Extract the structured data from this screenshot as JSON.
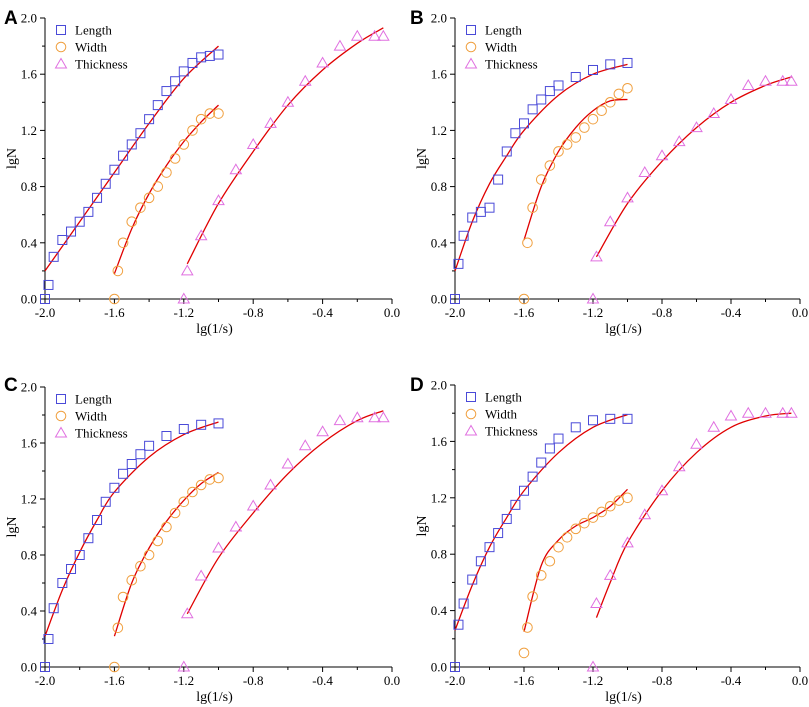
{
  "chart_data": [
    {
      "type": "scatter",
      "panel": "A",
      "xlabel": "lg(1/s)",
      "ylabel": "lgN",
      "xlim": [
        -2.0,
        0.0
      ],
      "ylim": [
        0.0,
        2.0
      ],
      "xticks": [
        "-2.0",
        "-1.6",
        "-1.2",
        "-0.8",
        "-0.4",
        "0.0"
      ],
      "yticks": [
        "0.0",
        "0.4",
        "0.8",
        "1.2",
        "1.6",
        "2.0"
      ],
      "legend": [
        "Length",
        "Width",
        "Thickness"
      ],
      "series": [
        {
          "name": "Length",
          "x": [
            -2.0,
            -1.98,
            -1.95,
            -1.9,
            -1.85,
            -1.8,
            -1.75,
            -1.7,
            -1.65,
            -1.6,
            -1.55,
            -1.5,
            -1.45,
            -1.4,
            -1.35,
            -1.3,
            -1.25,
            -1.2,
            -1.15,
            -1.1,
            -1.05,
            -1.0
          ],
          "y": [
            0.0,
            0.1,
            0.3,
            0.42,
            0.48,
            0.55,
            0.62,
            0.72,
            0.82,
            0.92,
            1.02,
            1.1,
            1.18,
            1.28,
            1.38,
            1.48,
            1.55,
            1.62,
            1.68,
            1.72,
            1.73,
            1.74
          ],
          "fit_x": [
            -2.0,
            -1.8,
            -1.6,
            -1.4,
            -1.2,
            -1.0
          ],
          "fit_y": [
            0.2,
            0.55,
            0.9,
            1.25,
            1.57,
            1.8
          ]
        },
        {
          "name": "Width",
          "x": [
            -1.6,
            -1.58,
            -1.55,
            -1.5,
            -1.45,
            -1.4,
            -1.35,
            -1.3,
            -1.25,
            -1.2,
            -1.15,
            -1.1,
            -1.05,
            -1.0
          ],
          "y": [
            0.0,
            0.2,
            0.4,
            0.55,
            0.65,
            0.72,
            0.8,
            0.9,
            1.0,
            1.1,
            1.2,
            1.28,
            1.32,
            1.32
          ],
          "fit_x": [
            -1.6,
            -1.5,
            -1.4,
            -1.3,
            -1.2,
            -1.1,
            -1.0
          ],
          "fit_y": [
            0.18,
            0.5,
            0.75,
            0.95,
            1.12,
            1.26,
            1.38
          ]
        },
        {
          "name": "Thickness",
          "x": [
            -1.2,
            -1.18,
            -1.1,
            -1.0,
            -0.9,
            -0.8,
            -0.7,
            -0.6,
            -0.5,
            -0.4,
            -0.3,
            -0.2,
            -0.1,
            -0.05
          ],
          "y": [
            0.0,
            0.2,
            0.45,
            0.7,
            0.92,
            1.1,
            1.25,
            1.4,
            1.55,
            1.68,
            1.8,
            1.87,
            1.87,
            1.87
          ],
          "fit_x": [
            -1.18,
            -1.0,
            -0.8,
            -0.6,
            -0.4,
            -0.2,
            -0.05
          ],
          "fit_y": [
            0.25,
            0.68,
            1.05,
            1.38,
            1.63,
            1.82,
            1.93
          ]
        }
      ]
    },
    {
      "type": "scatter",
      "panel": "B",
      "xlabel": "lg(1/s)",
      "ylabel": "lgN",
      "xlim": [
        -2.0,
        0.0
      ],
      "ylim": [
        0.0,
        2.0
      ],
      "xticks": [
        "-2.0",
        "-1.6",
        "-1.2",
        "-0.8",
        "-0.4",
        "0.0"
      ],
      "yticks": [
        "0.0",
        "0.4",
        "0.8",
        "1.2",
        "1.6",
        "2.0"
      ],
      "legend": [
        "Length",
        "Width",
        "Thickness"
      ],
      "series": [
        {
          "name": "Length",
          "x": [
            -2.0,
            -1.98,
            -1.95,
            -1.9,
            -1.85,
            -1.8,
            -1.75,
            -1.7,
            -1.65,
            -1.6,
            -1.55,
            -1.5,
            -1.45,
            -1.4,
            -1.3,
            -1.2,
            -1.1,
            -1.0
          ],
          "y": [
            0.0,
            0.25,
            0.45,
            0.58,
            0.62,
            0.65,
            0.85,
            1.05,
            1.18,
            1.25,
            1.35,
            1.42,
            1.48,
            1.52,
            1.58,
            1.63,
            1.67,
            1.68
          ],
          "fit_x": [
            -2.0,
            -1.9,
            -1.8,
            -1.7,
            -1.6,
            -1.4,
            -1.2,
            -1.0
          ],
          "fit_y": [
            0.2,
            0.55,
            0.82,
            1.02,
            1.2,
            1.45,
            1.6,
            1.67
          ]
        },
        {
          "name": "Width",
          "x": [
            -1.6,
            -1.58,
            -1.55,
            -1.5,
            -1.45,
            -1.4,
            -1.35,
            -1.3,
            -1.25,
            -1.2,
            -1.15,
            -1.1,
            -1.05,
            -1.0
          ],
          "y": [
            0.0,
            0.4,
            0.65,
            0.85,
            0.95,
            1.05,
            1.1,
            1.15,
            1.22,
            1.28,
            1.34,
            1.4,
            1.46,
            1.5
          ],
          "fit_x": [
            -1.6,
            -1.5,
            -1.4,
            -1.3,
            -1.2,
            -1.1,
            -1.0
          ],
          "fit_y": [
            0.42,
            0.8,
            1.05,
            1.22,
            1.34,
            1.41,
            1.42
          ]
        },
        {
          "name": "Thickness",
          "x": [
            -1.2,
            -1.18,
            -1.1,
            -1.0,
            -0.9,
            -0.8,
            -0.7,
            -0.6,
            -0.5,
            -0.4,
            -0.3,
            -0.2,
            -0.1,
            -0.05
          ],
          "y": [
            0.0,
            0.3,
            0.55,
            0.72,
            0.9,
            1.02,
            1.12,
            1.22,
            1.32,
            1.42,
            1.52,
            1.55,
            1.55,
            1.55
          ],
          "fit_x": [
            -1.18,
            -1.0,
            -0.8,
            -0.6,
            -0.4,
            -0.2,
            -0.05
          ],
          "fit_y": [
            0.3,
            0.68,
            0.98,
            1.22,
            1.4,
            1.52,
            1.58
          ]
        }
      ]
    },
    {
      "type": "scatter",
      "panel": "C",
      "xlabel": "lg(1/s)",
      "ylabel": "lgN",
      "xlim": [
        -2.0,
        0.0
      ],
      "ylim": [
        0.0,
        2.0
      ],
      "xticks": [
        "-2.0",
        "-1.6",
        "-1.2",
        "-0.8",
        "-0.4",
        "0.0"
      ],
      "yticks": [
        "0.0",
        "0.4",
        "0.8",
        "1.2",
        "1.6",
        "2.0"
      ],
      "legend": [
        "Length",
        "Width",
        "Thickness"
      ],
      "series": [
        {
          "name": "Length",
          "x": [
            -2.0,
            -1.98,
            -1.95,
            -1.9,
            -1.85,
            -1.8,
            -1.75,
            -1.7,
            -1.65,
            -1.6,
            -1.55,
            -1.5,
            -1.45,
            -1.4,
            -1.3,
            -1.2,
            -1.1,
            -1.0
          ],
          "y": [
            0.0,
            0.2,
            0.42,
            0.6,
            0.7,
            0.8,
            0.92,
            1.05,
            1.18,
            1.28,
            1.38,
            1.45,
            1.52,
            1.58,
            1.65,
            1.7,
            1.73,
            1.74
          ],
          "fit_x": [
            -2.0,
            -1.9,
            -1.8,
            -1.7,
            -1.6,
            -1.4,
            -1.2,
            -1.0
          ],
          "fit_y": [
            0.22,
            0.55,
            0.82,
            1.05,
            1.25,
            1.5,
            1.66,
            1.75
          ]
        },
        {
          "name": "Width",
          "x": [
            -1.6,
            -1.58,
            -1.55,
            -1.5,
            -1.45,
            -1.4,
            -1.35,
            -1.3,
            -1.25,
            -1.2,
            -1.15,
            -1.1,
            -1.05,
            -1.0
          ],
          "y": [
            0.0,
            0.28,
            0.5,
            0.62,
            0.72,
            0.8,
            0.9,
            1.0,
            1.1,
            1.18,
            1.25,
            1.3,
            1.34,
            1.35
          ],
          "fit_x": [
            -1.6,
            -1.5,
            -1.4,
            -1.3,
            -1.2,
            -1.1,
            -1.0
          ],
          "fit_y": [
            0.22,
            0.6,
            0.85,
            1.04,
            1.19,
            1.31,
            1.39
          ]
        },
        {
          "name": "Thickness",
          "x": [
            -1.2,
            -1.18,
            -1.1,
            -1.0,
            -0.9,
            -0.8,
            -0.7,
            -0.6,
            -0.5,
            -0.4,
            -0.3,
            -0.2,
            -0.1,
            -0.05
          ],
          "y": [
            0.0,
            0.38,
            0.65,
            0.85,
            1.0,
            1.15,
            1.3,
            1.45,
            1.58,
            1.68,
            1.76,
            1.78,
            1.78,
            1.78
          ],
          "fit_x": [
            -1.18,
            -1.0,
            -0.8,
            -0.6,
            -0.4,
            -0.2,
            -0.05
          ],
          "fit_y": [
            0.38,
            0.78,
            1.1,
            1.38,
            1.6,
            1.76,
            1.83
          ]
        }
      ]
    },
    {
      "type": "scatter",
      "panel": "D",
      "xlabel": "lg(1/s)",
      "ylabel": "lgN",
      "xlim": [
        -2.0,
        0.0
      ],
      "ylim": [
        0.0,
        2.0
      ],
      "xticks": [
        "-2.0",
        "-1.6",
        "-1.2",
        "-0.8",
        "-0.4",
        "0.0"
      ],
      "yticks": [
        "0.0",
        "0.4",
        "0.8",
        "1.2",
        "1.6",
        "2.0"
      ],
      "legend": [
        "Length",
        "Width",
        "Thickness"
      ],
      "series": [
        {
          "name": "Length",
          "x": [
            -2.0,
            -1.98,
            -1.95,
            -1.9,
            -1.85,
            -1.8,
            -1.75,
            -1.7,
            -1.65,
            -1.6,
            -1.55,
            -1.5,
            -1.45,
            -1.4,
            -1.3,
            -1.2,
            -1.1,
            -1.0
          ],
          "y": [
            0.0,
            0.3,
            0.45,
            0.62,
            0.75,
            0.85,
            0.95,
            1.05,
            1.15,
            1.25,
            1.35,
            1.45,
            1.55,
            1.62,
            1.7,
            1.75,
            1.76,
            1.76
          ],
          "fit_x": [
            -2.0,
            -1.9,
            -1.8,
            -1.7,
            -1.6,
            -1.4,
            -1.2,
            -1.0
          ],
          "fit_y": [
            0.26,
            0.58,
            0.85,
            1.06,
            1.25,
            1.52,
            1.7,
            1.79
          ]
        },
        {
          "name": "Width",
          "x": [
            -1.6,
            -1.58,
            -1.55,
            -1.5,
            -1.45,
            -1.4,
            -1.35,
            -1.3,
            -1.25,
            -1.2,
            -1.15,
            -1.1,
            -1.05,
            -1.0
          ],
          "y": [
            0.1,
            0.28,
            0.5,
            0.65,
            0.75,
            0.85,
            0.92,
            0.98,
            1.02,
            1.06,
            1.1,
            1.14,
            1.18,
            1.2
          ],
          "fit_x": [
            -1.6,
            -1.5,
            -1.4,
            -1.3,
            -1.2,
            -1.1,
            -1.0
          ],
          "fit_y": [
            0.25,
            0.72,
            0.9,
            1.0,
            1.06,
            1.14,
            1.26
          ]
        },
        {
          "name": "Thickness",
          "x": [
            -1.2,
            -1.18,
            -1.1,
            -1.0,
            -0.9,
            -0.8,
            -0.7,
            -0.6,
            -0.5,
            -0.4,
            -0.3,
            -0.2,
            -0.1,
            -0.05
          ],
          "y": [
            0.0,
            0.45,
            0.65,
            0.88,
            1.08,
            1.25,
            1.42,
            1.58,
            1.7,
            1.78,
            1.8,
            1.8,
            1.8,
            1.8
          ],
          "fit_x": [
            -1.18,
            -1.1,
            -1.0,
            -0.8,
            -0.6,
            -0.4,
            -0.2,
            -0.05
          ],
          "fit_y": [
            0.35,
            0.6,
            0.88,
            1.25,
            1.52,
            1.7,
            1.78,
            1.8
          ]
        }
      ]
    }
  ],
  "colors": {
    "length": "#4a4ad8",
    "width": "#f0a040",
    "thickness": "#e070e0",
    "fit": "#e00000",
    "axis": "#000000"
  }
}
